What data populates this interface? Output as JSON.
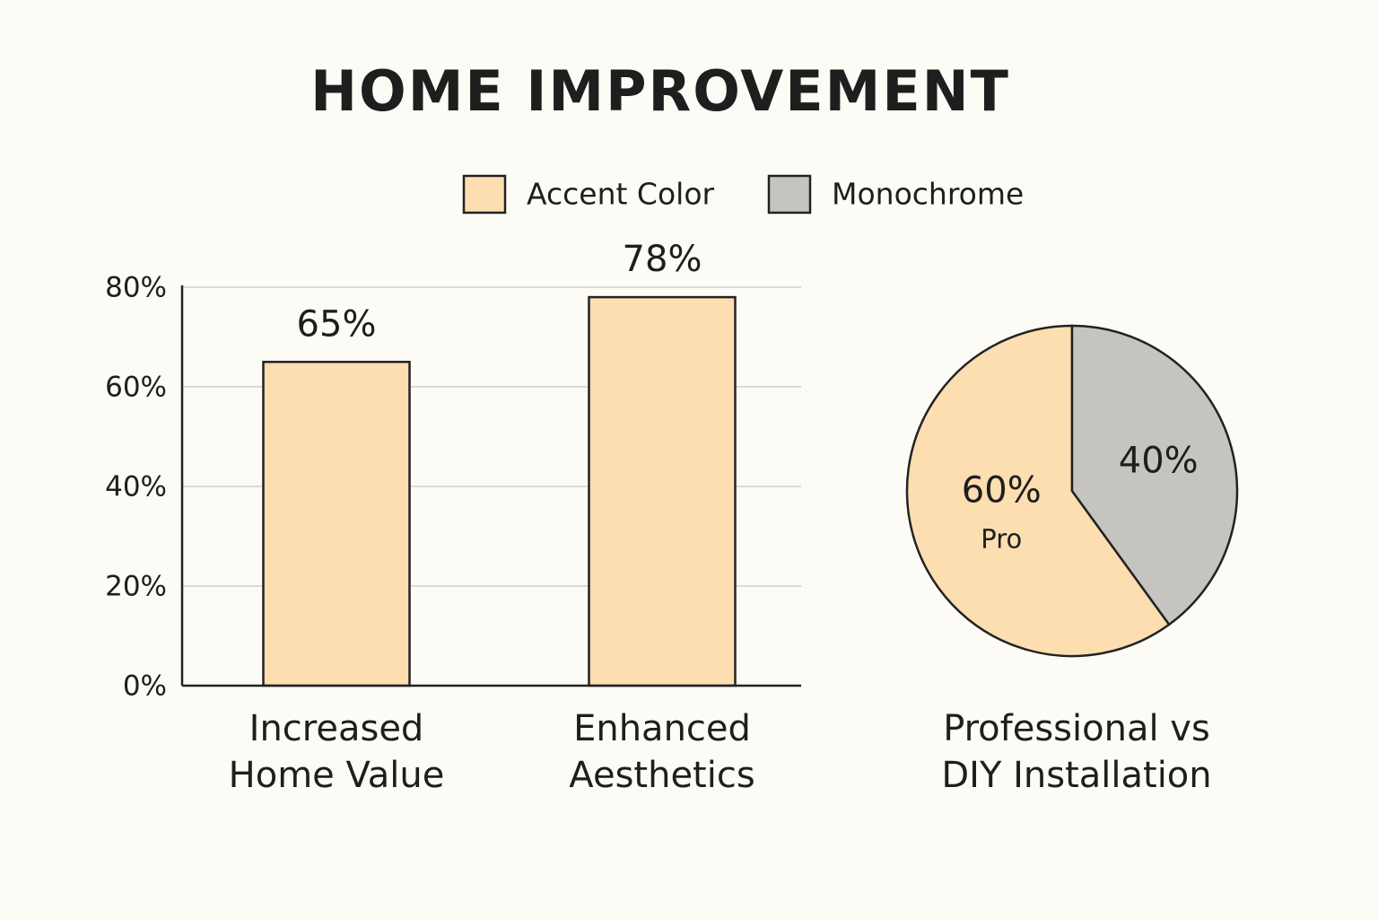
{
  "title": "HOME IMPROVEMENT",
  "legend": [
    {
      "name": "Accent Color",
      "color": "#fcdeb1"
    },
    {
      "name": "Monochrome",
      "color": "#c5c4c0"
    }
  ],
  "chart_data": [
    {
      "type": "bar",
      "categories": [
        "Increased Home Value",
        "Enhanced Aesthetics"
      ],
      "series": [
        {
          "name": "Accent Color",
          "color": "#fcdeb1",
          "values": [
            65,
            78
          ],
          "value_labels": [
            "65%",
            "78%"
          ]
        }
      ],
      "ylim": [
        0,
        80
      ],
      "yticks": [
        {
          "value": 0,
          "label": "0%"
        },
        {
          "value": 20,
          "label": "20%"
        },
        {
          "value": 40,
          "label": "40%"
        },
        {
          "value": 60,
          "label": "60%"
        },
        {
          "value": 80,
          "label": "80%"
        }
      ],
      "grid": true
    },
    {
      "type": "pie",
      "title": "Professional vs DIY Installation",
      "categories": [
        "Pro",
        null
      ],
      "values": [
        60,
        40
      ],
      "value_labels": [
        "60%",
        "40%"
      ],
      "colors": [
        "#fcdeb1",
        "#c5c4c0"
      ]
    }
  ]
}
